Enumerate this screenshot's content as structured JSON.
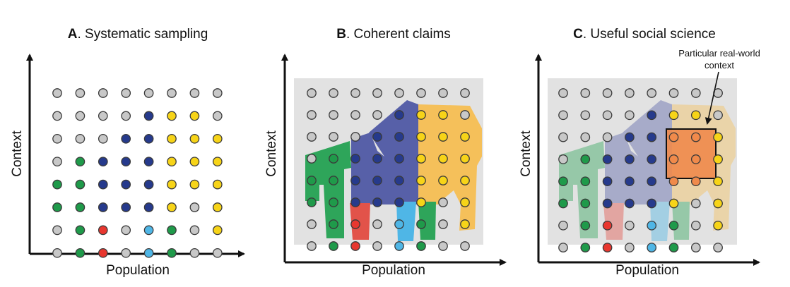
{
  "panels": [
    {
      "letter": "A",
      "title": ". Systematic sampling",
      "xlabel": "Population",
      "ylabel": "Context",
      "show_background": false,
      "show_shapes": false,
      "faded": false
    },
    {
      "letter": "B",
      "title": ". Coherent claims",
      "xlabel": "Population",
      "ylabel": "Context",
      "show_background": true,
      "show_shapes": true,
      "faded": false
    },
    {
      "letter": "C",
      "title": ". Useful social science",
      "xlabel": "Population",
      "ylabel": "Context",
      "show_background": true,
      "show_shapes": true,
      "faded": true,
      "annotation": [
        "Particular real-world",
        "context"
      ]
    }
  ],
  "colors": {
    "gray": "#c8c8c8",
    "green": "#1f9a4a",
    "navy": "#263a8c",
    "yellow": "#f7d418",
    "red": "#e8372f",
    "cyan": "#4fb6e6",
    "background": "#e2e2e2",
    "shape_green": "#2ea55a",
    "shape_navy": "#5760a8",
    "shape_orange": "#f5c05a",
    "shape_red": "#e2534a",
    "shape_cyan": "#4fb6e6",
    "highlight": "#f08a4b"
  },
  "dot_grid": [
    [
      "gray",
      "gray",
      "gray",
      "gray",
      "gray",
      "gray",
      "gray",
      "gray"
    ],
    [
      "gray",
      "gray",
      "gray",
      "gray",
      "navy",
      "yellow",
      "yellow",
      "gray"
    ],
    [
      "gray",
      "gray",
      "gray",
      "navy",
      "navy",
      "yellow",
      "yellow",
      "yellow"
    ],
    [
      "gray",
      "green",
      "navy",
      "navy",
      "navy",
      "yellow",
      "yellow",
      "yellow"
    ],
    [
      "green",
      "green",
      "navy",
      "navy",
      "navy",
      "yellow",
      "yellow",
      "yellow"
    ],
    [
      "green",
      "green",
      "navy",
      "navy",
      "navy",
      "yellow",
      "gray",
      "yellow"
    ],
    [
      "gray",
      "green",
      "red",
      "gray",
      "cyan",
      "green",
      "gray",
      "yellow"
    ],
    [
      "gray",
      "green",
      "red",
      "gray",
      "cyan",
      "green",
      "gray",
      "gray"
    ]
  ]
}
